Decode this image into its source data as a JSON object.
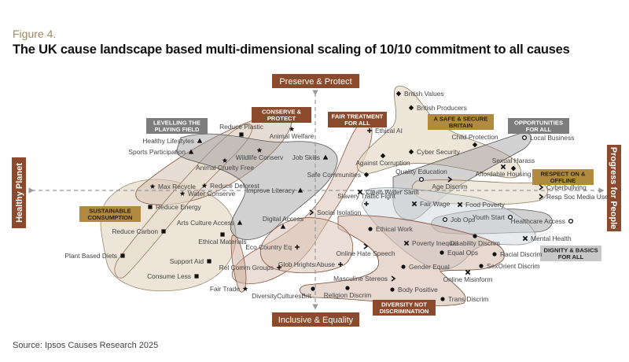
{
  "figure_label": "Figure 4.",
  "title": "The UK cause landscape based multi-dimensional scaling of 10/10 commitment to all causes",
  "source": "Source: Ipsos Causes Research 2025",
  "colors": {
    "brown": "#8b4a2b",
    "gold": "#b08a3e",
    "grey": "#7d7d7d",
    "lightgrey": "#c8c8c8"
  },
  "axes": {
    "top": "Preserve & Protect",
    "bottom": "Inclusive & Equality",
    "left": "Healthy Planet",
    "right": "Progress for People"
  },
  "clusters": [
    {
      "id": "levelling",
      "line1": "LEVELLING THE",
      "line2": "PLAYING FIELD",
      "style": "grey",
      "marker": "triangle-icon"
    },
    {
      "id": "conserve",
      "line1": "CONSERVE &",
      "line2": "PROTECT",
      "style": "brown",
      "marker": "star-icon"
    },
    {
      "id": "fair",
      "line1": "FAIR TREATMENT",
      "line2": "FOR ALL",
      "style": "brown",
      "marker": "plus-icon"
    },
    {
      "id": "safe",
      "line1": "A SAFE & SECURE",
      "line2": "BRITAIN",
      "style": "gold",
      "marker": "diamond-icon"
    },
    {
      "id": "opps",
      "line1": "OPPORTUNITIES",
      "line2": "FOR ALL",
      "style": "grey",
      "marker": "circle-icon"
    },
    {
      "id": "respect",
      "line1": "RESPECT ON &",
      "line2": "OFFLINE",
      "style": "gold",
      "marker": "chevron-icon"
    },
    {
      "id": "sustainable",
      "line1": "SUSTAINABLE",
      "line2": "CONSUMPTION",
      "style": "gold",
      "marker": "square-icon"
    },
    {
      "id": "dignity",
      "line1": "DIGNITY & BASICS",
      "line2": "FOR ALL",
      "style": "lightgrey",
      "marker": "cross-icon"
    },
    {
      "id": "diversity",
      "line1": "DIVERSITY NOT",
      "line2": "DISCRIMINATION",
      "style": "brown",
      "marker": "dot-icon"
    }
  ],
  "causes": [
    {
      "label": "British Values",
      "marker": "diamond"
    },
    {
      "label": "British Producers",
      "marker": "diamond"
    },
    {
      "label": "Ethical AI",
      "marker": "plus"
    },
    {
      "label": "Child Protection",
      "marker": "diamond"
    },
    {
      "label": "Local Business",
      "marker": "circle"
    },
    {
      "label": "Cyber Security",
      "marker": "diamond"
    },
    {
      "label": "Against Corruption",
      "marker": "diamond"
    },
    {
      "label": "Sexual Harass",
      "marker": "diamond"
    },
    {
      "label": "Safe Communities",
      "marker": "diamond"
    },
    {
      "label": "Quality Education",
      "marker": "circle"
    },
    {
      "label": "Affordable Housing",
      "marker": "cross"
    },
    {
      "label": "Cyberbullying",
      "marker": "chevron"
    },
    {
      "label": "Resp Soc Media Use",
      "marker": "chevron"
    },
    {
      "label": "Age Discrim",
      "marker": "chevron"
    },
    {
      "label": "Clean Water Sanit",
      "marker": "cross"
    },
    {
      "label": "Slavery Traffic Fight",
      "marker": "plus"
    },
    {
      "label": "Fair Wage",
      "marker": "cross"
    },
    {
      "label": "Food Poverty",
      "marker": "cross"
    },
    {
      "label": "Job Ops",
      "marker": "circle"
    },
    {
      "label": "Youth Start",
      "marker": "circle"
    },
    {
      "label": "Healthcare Access",
      "marker": "circle"
    },
    {
      "label": "Mental Health",
      "marker": "cross"
    },
    {
      "label": "Poverty Inequal",
      "marker": "cross"
    },
    {
      "label": "Disability Discrim",
      "marker": "dot"
    },
    {
      "label": "Equal Ops",
      "marker": "dot"
    },
    {
      "label": "Racial Discrim",
      "marker": "dot"
    },
    {
      "label": "Gender Equal",
      "marker": "dot"
    },
    {
      "label": "SexOrient Discrim",
      "marker": "dot"
    },
    {
      "label": "Online Misinform",
      "marker": "cross"
    },
    {
      "label": "Body Positive",
      "marker": "dot"
    },
    {
      "label": "Trans Discrim",
      "marker": "dot"
    },
    {
      "label": "Religion Discrim",
      "marker": "dot"
    },
    {
      "label": "DiversityCulturesBrit",
      "marker": "dot"
    },
    {
      "label": "Masculine Stereos",
      "marker": "chevron"
    },
    {
      "label": "Online Hate Speech",
      "marker": "chevron"
    },
    {
      "label": "Glob Hrights Abuse",
      "marker": "plus"
    },
    {
      "label": "Rel Comm Groups",
      "marker": "plus"
    },
    {
      "label": "Eco Country Eq",
      "marker": "plus"
    },
    {
      "label": "Ethical Work",
      "marker": "dot"
    },
    {
      "label": "Social Isolation",
      "marker": "chevron"
    },
    {
      "label": "Digital Access",
      "marker": "triangle"
    },
    {
      "label": "Arts Culture Access",
      "marker": "triangle"
    },
    {
      "label": "Improve Literacy",
      "marker": "triangle"
    },
    {
      "label": "Job Skills",
      "marker": "triangle"
    },
    {
      "label": "Healthy Lifestyles",
      "marker": "triangle"
    },
    {
      "label": "Sports Participation",
      "marker": "triangle"
    },
    {
      "label": "Reduce Plastic",
      "marker": "square"
    },
    {
      "label": "Animal Welfare",
      "marker": "star"
    },
    {
      "label": "Wildlife Conserv",
      "marker": "star"
    },
    {
      "label": "Animal Cruelty Free",
      "marker": "star"
    },
    {
      "label": "Max Recycle",
      "marker": "star"
    },
    {
      "label": "Reduce Deforest",
      "marker": "star"
    },
    {
      "label": "Water Conserve",
      "marker": "star"
    },
    {
      "label": "Reduce Energy",
      "marker": "square"
    },
    {
      "label": "Reduce Carbon",
      "marker": "square"
    },
    {
      "label": "Ethical Materials",
      "marker": "square"
    },
    {
      "label": "Plant Based Diets",
      "marker": "square"
    },
    {
      "label": "Support Aid",
      "marker": "square"
    },
    {
      "label": "Consume Less",
      "marker": "square"
    },
    {
      "label": "Fair Trade",
      "marker": "star"
    }
  ]
}
